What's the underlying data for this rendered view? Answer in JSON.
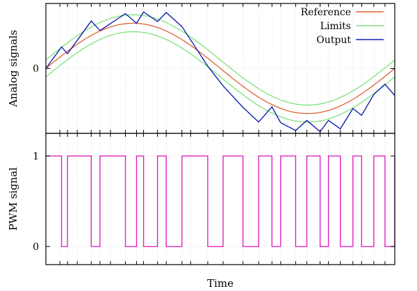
{
  "chart_data": [
    {
      "type": "line",
      "ylabel": "Analog signals",
      "y_ticks": [
        {
          "value": 0,
          "label": "0"
        }
      ],
      "x_range": [
        0,
        1
      ],
      "ylim": [
        -1.15,
        1.15
      ],
      "grid": true,
      "legend_position": "top-right",
      "legend": [
        {
          "key": "reference",
          "label": "Reference",
          "color": "#e06030"
        },
        {
          "key": "limits",
          "label": "Limits",
          "color": "#80e080"
        },
        {
          "key": "output",
          "label": "Output",
          "color": "#1020b0"
        }
      ],
      "reference": {
        "amplitude": 0.8,
        "cycles": 1.0
      },
      "limit_band": 0.15,
      "output_x": [
        0,
        0.045,
        0.062,
        0.13,
        0.155,
        0.228,
        0.26,
        0.28,
        0.32,
        0.345,
        0.39,
        0.464,
        0.508,
        0.565,
        0.61,
        0.648,
        0.673,
        0.716,
        0.748,
        0.786,
        0.81,
        0.844,
        0.88,
        0.905,
        0.94,
        0.972,
        1.0
      ],
      "output_y": [
        0.0,
        0.38,
        0.26,
        0.84,
        0.67,
        0.97,
        0.8,
        1.0,
        0.83,
        0.99,
        0.74,
        0.04,
        -0.31,
        -0.69,
        -0.95,
        -0.68,
        -0.96,
        -1.1,
        -0.92,
        -1.12,
        -0.92,
        -1.07,
        -0.71,
        -0.83,
        -0.46,
        -0.28,
        -0.48
      ]
    },
    {
      "type": "line",
      "ylabel": "PWM signal",
      "xlabel": "Time",
      "y_ticks": [
        {
          "value": 0,
          "label": "0"
        },
        {
          "value": 1,
          "label": "1"
        }
      ],
      "ylim": [
        -0.2,
        1.25
      ],
      "grid": true,
      "color": "#e020c0",
      "pwm_x": [
        0,
        0.045,
        0.062,
        0.13,
        0.155,
        0.228,
        0.26,
        0.28,
        0.32,
        0.345,
        0.39,
        0.464,
        0.508,
        0.565,
        0.61,
        0.648,
        0.673,
        0.716,
        0.748,
        0.786,
        0.81,
        0.844,
        0.88,
        0.905,
        0.94,
        0.972,
        1.0
      ],
      "pwm_y": [
        1,
        0,
        1,
        0,
        1,
        0,
        1,
        0,
        1,
        0,
        1,
        0,
        1,
        0,
        1,
        0,
        1,
        0,
        1,
        0,
        1,
        0,
        1,
        0,
        1,
        0,
        1
      ]
    }
  ],
  "x_ticks": [
    0.04,
    0.062,
    0.09,
    0.13,
    0.155,
    0.185,
    0.228,
    0.26,
    0.28,
    0.32,
    0.345,
    0.39,
    0.415,
    0.464,
    0.508,
    0.565,
    0.61,
    0.648,
    0.673,
    0.716,
    0.748,
    0.786,
    0.81,
    0.844,
    0.88,
    0.905,
    0.94,
    0.972
  ]
}
